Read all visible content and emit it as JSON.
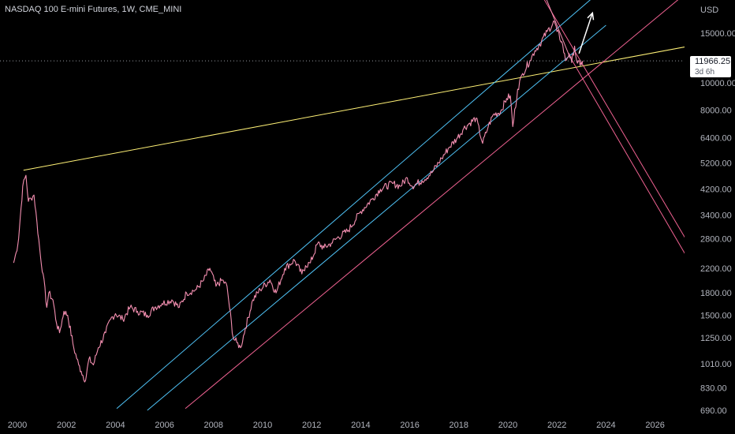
{
  "header": {
    "title": "NASDAQ 100 E-mini Futures, 1W, CME_MINI"
  },
  "chart_data": {
    "type": "line",
    "y_axis": {
      "unit": "USD",
      "scale": "log",
      "ticks": [
        690,
        830,
        1010,
        1250,
        1500,
        1800,
        2200,
        2800,
        3400,
        4200,
        5200,
        6400,
        8000,
        10000,
        15000
      ],
      "tick_labels": [
        "690.00",
        "830.00",
        "1010.00",
        "1250.00",
        "1500.00",
        "1800.00",
        "2200.00",
        "2800.00",
        "3400.00",
        "4200.00",
        "5200.00",
        "6400.00",
        "8000.00",
        "10000.00",
        "15000.00"
      ]
    },
    "x_axis": {
      "ticks": [
        2000,
        2002,
        2004,
        2006,
        2008,
        2010,
        2012,
        2014,
        2016,
        2018,
        2020,
        2022,
        2024,
        2026
      ],
      "tick_labels": [
        "2000",
        "2002",
        "2004",
        "2006",
        "2008",
        "2010",
        "2012",
        "2014",
        "2016",
        "2018",
        "2020",
        "2022",
        "2024",
        "2026"
      ]
    },
    "current_price": {
      "value": 11966.25,
      "label": "11966.25",
      "countdown": "3d 6h",
      "color": "#ffffff"
    },
    "series": [
      {
        "color": "#f48fb1",
        "x": [
          1999.85,
          1999.95,
          2000.05,
          2000.15,
          2000.22,
          2000.35,
          2000.45,
          2000.55,
          2000.68,
          2000.8,
          2000.95,
          2001.05,
          2001.2,
          2001.28,
          2001.45,
          2001.6,
          2001.72,
          2001.9,
          2002.05,
          2002.3,
          2002.5,
          2002.6,
          2002.78,
          2002.92,
          2003.1,
          2003.3,
          2003.6,
          2003.8,
          2004.0,
          2004.3,
          2004.6,
          2004.9,
          2005.3,
          2005.6,
          2005.9,
          2006.3,
          2006.6,
          2006.9,
          2007.3,
          2007.6,
          2007.85,
          2008.1,
          2008.35,
          2008.55,
          2008.65,
          2008.8,
          2008.95,
          2009.1,
          2009.3,
          2009.6,
          2009.9,
          2010.3,
          2010.55,
          2010.9,
          2011.3,
          2011.6,
          2011.75,
          2011.95,
          2012.25,
          2012.5,
          2012.8,
          2013.0,
          2013.5,
          2014.0,
          2014.5,
          2014.8,
          2015.3,
          2015.6,
          2015.9,
          2016.1,
          2016.5,
          2016.9,
          2017.3,
          2017.6,
          2017.95,
          2018.2,
          2018.45,
          2018.7,
          2018.97,
          2019.2,
          2019.4,
          2019.7,
          2019.95,
          2020.1,
          2020.2,
          2020.4,
          2020.6,
          2020.9,
          2021.1,
          2021.3,
          2021.6,
          2021.9,
          2022.0,
          2022.2,
          2022.35,
          2022.5,
          2022.6,
          2022.72,
          2022.8,
          2022.95,
          2023.05
        ],
        "y": [
          2300,
          2500,
          2800,
          3600,
          4300,
          4700,
          3800,
          3900,
          4000,
          3200,
          2400,
          2100,
          1600,
          1800,
          1700,
          1400,
          1300,
          1550,
          1500,
          1150,
          1000,
          950,
          880,
          1050,
          1000,
          1150,
          1300,
          1450,
          1520,
          1450,
          1600,
          1550,
          1500,
          1600,
          1650,
          1700,
          1600,
          1800,
          1850,
          2000,
          2200,
          1900,
          2000,
          1900,
          1600,
          1250,
          1200,
          1150,
          1350,
          1700,
          1850,
          2000,
          1800,
          2200,
          2350,
          2100,
          2250,
          2300,
          2700,
          2600,
          2700,
          2800,
          3000,
          3500,
          3900,
          4200,
          4400,
          4300,
          4600,
          4300,
          4500,
          4800,
          5400,
          5900,
          6400,
          6900,
          7200,
          7500,
          6100,
          7000,
          7700,
          7900,
          8800,
          9000,
          7000,
          9500,
          10800,
          12000,
          13000,
          13700,
          15200,
          16500,
          15200,
          14000,
          12000,
          12700,
          11800,
          13500,
          12000,
          11500,
          11966
        ]
      }
    ],
    "annotations": {
      "lines": [
        {
          "color": "#fff176",
          "points": [
            [
              2000.25,
              4900
            ],
            [
              2027.8,
              13700
            ]
          ]
        },
        {
          "color": "#4fc3f7",
          "points": [
            [
              2004.05,
              700
            ],
            [
              2024.0,
              22000
            ]
          ]
        },
        {
          "color": "#4fc3f7",
          "points": [
            [
              2005.3,
              690
            ],
            [
              2024.0,
              16000
            ]
          ]
        },
        {
          "color": "#f06292",
          "points": [
            [
              2006.85,
              700
            ],
            [
              2027.6,
              22000
            ]
          ]
        },
        {
          "color": "#f06292",
          "points": [
            [
              2021.3,
              21000
            ],
            [
              2027.7,
              2400
            ]
          ]
        },
        {
          "color": "#f06292",
          "points": [
            [
              2022.5,
              12500
            ],
            [
              2027.7,
              2100
            ]
          ]
        },
        {
          "color": "#f48fb1",
          "points": [
            [
              2021.45,
              21000
            ],
            [
              2022.5,
              12500
            ]
          ]
        }
      ],
      "arrow": {
        "color": "#ffffff",
        "from": [
          2022.9,
          12700
        ],
        "to": [
          2023.45,
          17700
        ]
      }
    }
  }
}
